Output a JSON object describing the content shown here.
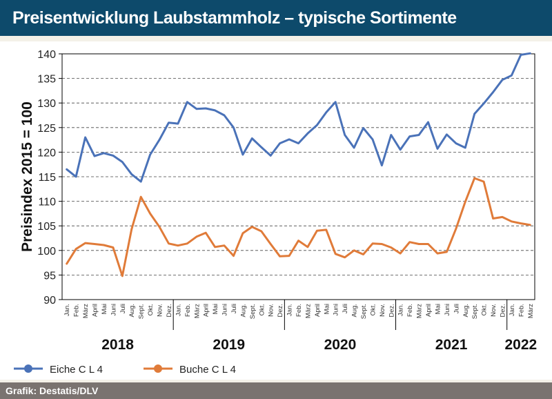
{
  "header": {
    "title": "Preisentwicklung Laubstammholz – typische Sortimente"
  },
  "footer": {
    "source": "Grafik: Destatis/DLV"
  },
  "colors": {
    "eiche": "#4a72b8",
    "buche": "#e07b39",
    "title_bg": "#0d4a6b",
    "footer_bg": "#7a7370"
  },
  "chart_data": {
    "type": "line",
    "title": "",
    "ylabel": "Preisindex 2015 = 100",
    "xlabel": "",
    "ylim": [
      90,
      140
    ],
    "yticks": [
      90,
      95,
      100,
      105,
      110,
      115,
      120,
      125,
      130,
      135,
      140
    ],
    "grid": true,
    "legend_position": "bottom-left",
    "years": [
      {
        "label": "2018",
        "months": 12
      },
      {
        "label": "2019",
        "months": 12
      },
      {
        "label": "2020",
        "months": 12
      },
      {
        "label": "2021",
        "months": 12
      },
      {
        "label": "2022",
        "months": 3
      }
    ],
    "categories": [
      "Jan.",
      "Feb.",
      "März",
      "April",
      "Mai",
      "Juni",
      "Juli",
      "Aug.",
      "Sept.",
      "Okt.",
      "Nov.",
      "Dez.",
      "Jan.",
      "Feb.",
      "März",
      "April",
      "Mai",
      "Juni",
      "Juli",
      "Aug.",
      "Sept.",
      "Okt.",
      "Nov.",
      "Dez.",
      "Jan.",
      "Feb.",
      "März",
      "April",
      "Mai",
      "Juni",
      "Juli",
      "Aug.",
      "Sept.",
      "Okt.",
      "Nov.",
      "Dez.",
      "Jan.",
      "Feb.",
      "März",
      "April",
      "Mai",
      "Juni",
      "Juli",
      "Aug.",
      "Sept.",
      "Okt.",
      "Nov.",
      "Dez.",
      "Jan.",
      "Feb.",
      "März"
    ],
    "series": [
      {
        "name": "Eiche C L 4",
        "values": [
          116.5,
          115,
          123,
          119.2,
          119.8,
          119.3,
          118,
          115.5,
          114,
          119.5,
          122.5,
          126,
          125.8,
          130.2,
          128.8,
          128.9,
          128.5,
          127.5,
          125,
          119.5,
          122.8,
          121,
          119.3,
          121.8,
          122.6,
          121.8,
          123.8,
          125.5,
          128.1,
          130.2,
          123.5,
          120.9,
          124.9,
          122.6,
          117.3,
          123.5,
          120.5,
          123.2,
          123.5,
          126.1,
          120.7,
          123.6,
          121.8,
          120.9,
          127.8,
          129.9,
          132.2,
          134.7,
          135.6,
          139.8,
          140.1
        ]
      },
      {
        "name": "Buche C L 4",
        "values": [
          97.3,
          100.3,
          101.5,
          101.3,
          101.1,
          100.6,
          94.8,
          104.3,
          110.9,
          107.5,
          104.8,
          101.4,
          101,
          101.4,
          102.8,
          103.6,
          100.7,
          101,
          98.9,
          103.5,
          104.8,
          103.9,
          101.3,
          98.8,
          98.9,
          102,
          100.7,
          104,
          104.2,
          99.3,
          98.6,
          100,
          99.2,
          101.4,
          101.3,
          100.6,
          99.4,
          101.7,
          101.3,
          101.3,
          99.4,
          99.7,
          104.4,
          109.9,
          114.7,
          114,
          106.5,
          106.8,
          105.9,
          105.5,
          105.2
        ]
      }
    ]
  }
}
